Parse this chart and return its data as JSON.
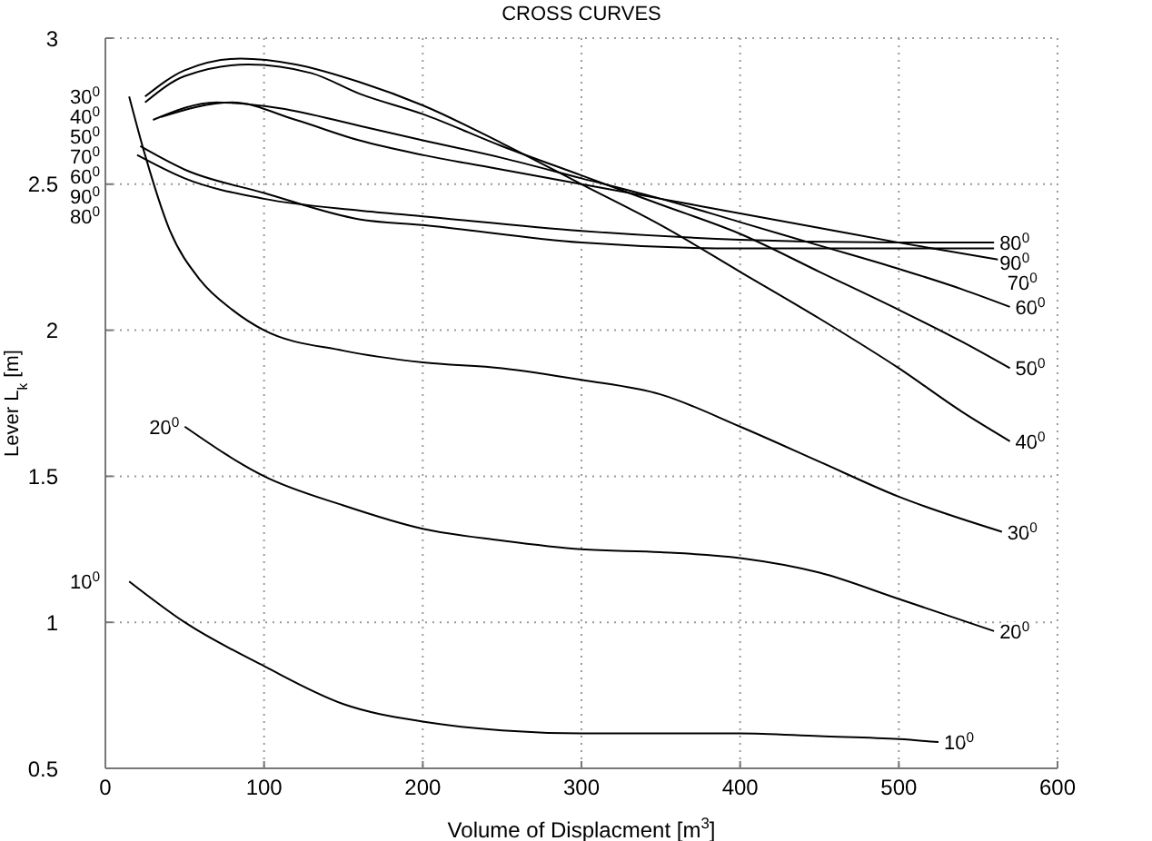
{
  "chart_data": {
    "type": "line",
    "title": "CROSS CURVES",
    "xlabel": "Volume of Displacment [m$^{3}$]",
    "ylabel": "Lever L$_{k}$ [m]",
    "xlim": [
      0,
      600
    ],
    "xticks": [
      0,
      100,
      200,
      300,
      400,
      500,
      600
    ],
    "ylim": [
      0.5,
      3
    ],
    "yticks": [
      0.5,
      1,
      1.5,
      2,
      2.5,
      3
    ],
    "grid": true,
    "marker": "none",
    "line_style": "solid",
    "series": [
      {
        "name": "10$^{0}$",
        "color": "#000000",
        "x": [
          15,
          50,
          100,
          150,
          200,
          250,
          300,
          400,
          450,
          500,
          525
        ],
        "values": [
          1.14,
          1.0,
          0.85,
          0.72,
          0.66,
          0.63,
          0.62,
          0.62,
          0.61,
          0.6,
          0.59
        ]
      },
      {
        "name": "20$^{0}$",
        "color": "#000000",
        "x": [
          50,
          100,
          150,
          200,
          250,
          300,
          350,
          400,
          450,
          500,
          560
        ],
        "values": [
          1.67,
          1.5,
          1.4,
          1.32,
          1.28,
          1.25,
          1.24,
          1.22,
          1.17,
          1.08,
          0.97
        ]
      },
      {
        "name": "30$^{0}$",
        "color": "#000000",
        "x": [
          15,
          25,
          40,
          60,
          80,
          100,
          150,
          200,
          250,
          300,
          350,
          400,
          450,
          500,
          565
        ],
        "values": [
          2.8,
          2.6,
          2.35,
          2.17,
          2.07,
          2.0,
          1.93,
          1.89,
          1.87,
          1.83,
          1.78,
          1.67,
          1.55,
          1.43,
          1.31
        ]
      },
      {
        "name": "40$^{0}$",
        "color": "#000000",
        "x": [
          25,
          50,
          85,
          120,
          160,
          200,
          250,
          300,
          350,
          400,
          450,
          500,
          540,
          570
        ],
        "values": [
          2.8,
          2.89,
          2.93,
          2.91,
          2.85,
          2.77,
          2.64,
          2.5,
          2.36,
          2.2,
          2.04,
          1.87,
          1.72,
          1.62
        ]
      },
      {
        "name": "50$^{0}$",
        "color": "#000000",
        "x": [
          25,
          50,
          90,
          130,
          160,
          200,
          250,
          300,
          350,
          400,
          450,
          500,
          540,
          570
        ],
        "values": [
          2.78,
          2.87,
          2.91,
          2.88,
          2.81,
          2.74,
          2.63,
          2.53,
          2.43,
          2.33,
          2.2,
          2.07,
          1.96,
          1.87
        ]
      },
      {
        "name": "60$^{0}$",
        "color": "#000000",
        "x": [
          30,
          70,
          110,
          160,
          200,
          250,
          300,
          350,
          400,
          450,
          500,
          540,
          570
        ],
        "values": [
          2.72,
          2.78,
          2.76,
          2.7,
          2.65,
          2.59,
          2.52,
          2.45,
          2.37,
          2.29,
          2.21,
          2.14,
          2.08
        ]
      },
      {
        "name": "70$^{0}$",
        "color": "#000000",
        "x": [
          35,
          80,
          120,
          160,
          200,
          250,
          300,
          350,
          400,
          450,
          500,
          565
        ],
        "values": [
          2.73,
          2.78,
          2.72,
          2.65,
          2.6,
          2.55,
          2.5,
          2.45,
          2.4,
          2.35,
          2.3,
          2.24
        ]
      },
      {
        "name": "80$^{0}$",
        "color": "#000000",
        "x": [
          20,
          50,
          100,
          160,
          200,
          300,
          400,
          500,
          560
        ],
        "values": [
          2.6,
          2.52,
          2.45,
          2.41,
          2.39,
          2.34,
          2.31,
          2.3,
          2.3
        ]
      },
      {
        "name": "90$^{0}$",
        "color": "#000000",
        "x": [
          22,
          50,
          100,
          160,
          200,
          300,
          400,
          500,
          560
        ],
        "values": [
          2.63,
          2.55,
          2.47,
          2.38,
          2.36,
          2.3,
          2.28,
          2.28,
          2.28
        ]
      }
    ]
  }
}
